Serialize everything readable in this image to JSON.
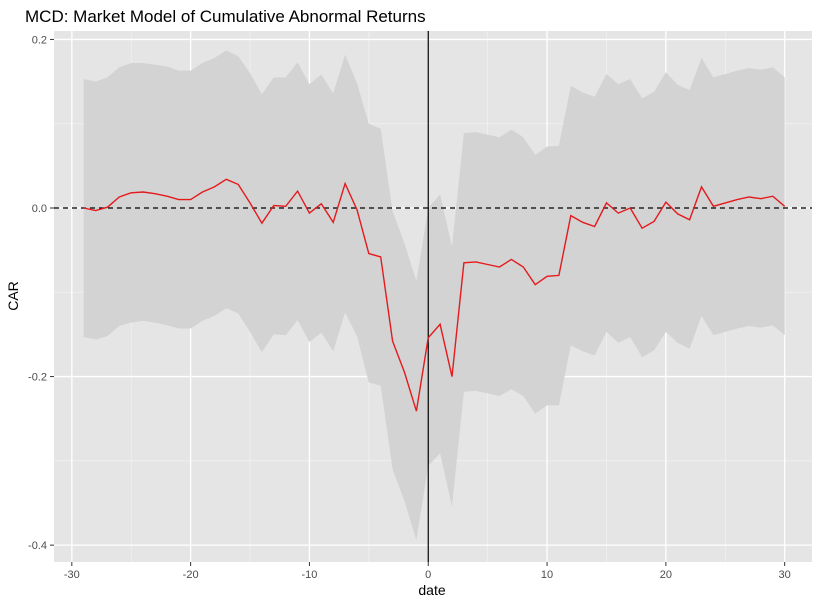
{
  "chart_data": {
    "type": "line",
    "title": "MCD: Market Model of Cumulative Abnormal Returns",
    "xlabel": "date",
    "ylabel": "CAR",
    "xlim": [
      -31.5,
      32.3
    ],
    "ylim": [
      -0.42,
      0.21
    ],
    "x_ticks": [
      -30,
      -20,
      -10,
      0,
      10,
      20,
      30
    ],
    "y_ticks": [
      -0.4,
      -0.2,
      0.0,
      0.2
    ],
    "x_tick_labels": [
      "-30",
      "-20",
      "-10",
      "0",
      "10",
      "20",
      "30"
    ],
    "y_tick_labels": [
      "-0.4",
      "-0.2",
      "0.0",
      "0.2"
    ],
    "grid": true,
    "vertical_reference_line": 0,
    "horizontal_reference_line": 0,
    "series": [
      {
        "x": [
          -29,
          -28,
          -27,
          -26,
          -25,
          -24,
          -23,
          -22,
          -21,
          -20,
          -19,
          -18,
          -17,
          -16,
          -15,
          -14,
          -13,
          -12,
          -11,
          -10,
          -9,
          -8,
          -7,
          -6,
          -5,
          -4,
          -3,
          -2,
          -1,
          0,
          1,
          2,
          3,
          4,
          5,
          6,
          7,
          8,
          9,
          10,
          11,
          12,
          13,
          14,
          15,
          16,
          17,
          18,
          19,
          20,
          21,
          22,
          23,
          24,
          25,
          26,
          27,
          28,
          29,
          30
        ],
        "values": [
          0.0,
          -0.003,
          0.001,
          0.013,
          0.018,
          0.019,
          0.017,
          0.014,
          0.01,
          0.01,
          0.019,
          0.025,
          0.034,
          0.028,
          0.006,
          -0.018,
          0.003,
          0.002,
          0.02,
          -0.006,
          0.005,
          -0.017,
          0.029,
          -0.002,
          -0.054,
          -0.058,
          -0.158,
          -0.195,
          -0.241,
          -0.154,
          -0.138,
          -0.2,
          -0.065,
          -0.064,
          -0.067,
          -0.07,
          -0.061,
          -0.07,
          -0.091,
          -0.081,
          -0.08,
          -0.009,
          -0.017,
          -0.022,
          0.006,
          -0.006,
          0.0,
          -0.024,
          -0.016,
          0.007,
          -0.007,
          -0.014,
          0.025,
          0.002,
          0.006,
          0.01,
          0.013,
          0.011,
          0.014,
          0.002
        ],
        "upper": [
          0.153,
          0.15,
          0.155,
          0.167,
          0.172,
          0.172,
          0.17,
          0.168,
          0.163,
          0.163,
          0.172,
          0.178,
          0.187,
          0.18,
          0.16,
          0.135,
          0.155,
          0.155,
          0.173,
          0.147,
          0.158,
          0.136,
          0.182,
          0.148,
          0.1,
          0.094,
          -0.004,
          -0.042,
          -0.087,
          0.0,
          0.016,
          -0.046,
          0.089,
          0.09,
          0.087,
          0.084,
          0.093,
          0.084,
          0.063,
          0.073,
          0.074,
          0.145,
          0.137,
          0.132,
          0.159,
          0.147,
          0.153,
          0.13,
          0.138,
          0.161,
          0.146,
          0.14,
          0.178,
          0.155,
          0.159,
          0.163,
          0.166,
          0.164,
          0.167,
          0.155
        ],
        "lower": [
          -0.153,
          -0.156,
          -0.152,
          -0.14,
          -0.136,
          -0.134,
          -0.136,
          -0.139,
          -0.143,
          -0.143,
          -0.134,
          -0.128,
          -0.119,
          -0.125,
          -0.147,
          -0.171,
          -0.15,
          -0.151,
          -0.133,
          -0.159,
          -0.148,
          -0.17,
          -0.124,
          -0.152,
          -0.207,
          -0.211,
          -0.31,
          -0.348,
          -0.394,
          -0.306,
          -0.291,
          -0.354,
          -0.218,
          -0.217,
          -0.22,
          -0.223,
          -0.215,
          -0.223,
          -0.244,
          -0.234,
          -0.234,
          -0.163,
          -0.17,
          -0.175,
          -0.147,
          -0.16,
          -0.153,
          -0.177,
          -0.169,
          -0.147,
          -0.16,
          -0.167,
          -0.128,
          -0.151,
          -0.147,
          -0.143,
          -0.14,
          -0.142,
          -0.139,
          -0.151
        ],
        "color": "#e41a1c"
      }
    ],
    "colors": {
      "panel_background": "#e5e5e5",
      "grid_major": "#ffffff",
      "grid_minor": "#f2f2f2",
      "ribbon": "#d3d3d3",
      "reference_line": "#000000"
    }
  }
}
